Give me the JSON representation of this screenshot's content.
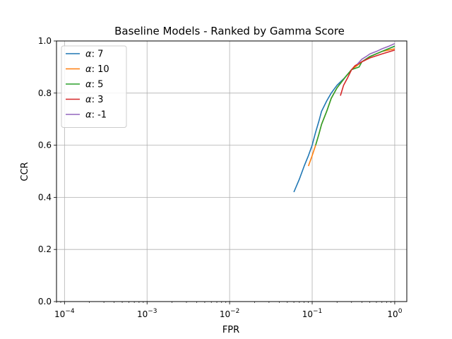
{
  "chart_data": {
    "type": "line",
    "title": "Baseline Models - Ranked by Gamma Score",
    "xlabel": "FPR",
    "ylabel": "CCR",
    "x_scale": "log",
    "xlim": [
      8e-05,
      1.4
    ],
    "ylim": [
      0.0,
      1.0
    ],
    "grid": true,
    "legend_position": "top-left",
    "x_ticks": [
      {
        "value": 0.0001,
        "base": "10",
        "exp": "−4"
      },
      {
        "value": 0.001,
        "base": "10",
        "exp": "−3"
      },
      {
        "value": 0.01,
        "base": "10",
        "exp": "−2"
      },
      {
        "value": 0.1,
        "base": "10",
        "exp": "−1"
      },
      {
        "value": 1,
        "base": "10",
        "exp": "0"
      }
    ],
    "y_ticks": [
      {
        "value": 0.0,
        "label": "0.0"
      },
      {
        "value": 0.2,
        "label": "0.2"
      },
      {
        "value": 0.4,
        "label": "0.4"
      },
      {
        "value": 0.6,
        "label": "0.6"
      },
      {
        "value": 0.8,
        "label": "0.8"
      },
      {
        "value": 1.0,
        "label": "1.0"
      }
    ],
    "series": [
      {
        "name": "α: 7",
        "greek": "α",
        "value": "7",
        "color": "#1f77b4",
        "x": [
          0.06,
          0.07,
          0.08,
          0.09,
          0.1,
          0.11,
          0.12,
          0.13,
          0.15,
          0.17,
          0.2,
          0.25,
          0.3,
          0.4,
          0.5,
          0.7,
          1.0
        ],
        "y": [
          0.42,
          0.47,
          0.52,
          0.56,
          0.6,
          0.65,
          0.69,
          0.73,
          0.77,
          0.8,
          0.83,
          0.86,
          0.89,
          0.92,
          0.94,
          0.96,
          0.98
        ]
      },
      {
        "name": "α: 10",
        "greek": "α",
        "value": "10",
        "color": "#ff7f0e",
        "x": [
          0.09,
          0.1,
          0.11,
          0.12,
          0.13,
          0.15,
          0.17,
          0.2,
          0.25,
          0.3,
          0.4,
          0.5,
          0.7,
          1.0
        ],
        "y": [
          0.52,
          0.56,
          0.6,
          0.64,
          0.68,
          0.73,
          0.78,
          0.82,
          0.86,
          0.89,
          0.92,
          0.94,
          0.96,
          0.97
        ]
      },
      {
        "name": "α: 5",
        "greek": "α",
        "value": "5",
        "color": "#2ca02c",
        "x": [
          0.11,
          0.12,
          0.13,
          0.15,
          0.17,
          0.2,
          0.25,
          0.3,
          0.37,
          0.4,
          0.5,
          0.7,
          1.0
        ],
        "y": [
          0.6,
          0.64,
          0.68,
          0.73,
          0.78,
          0.82,
          0.86,
          0.89,
          0.9,
          0.92,
          0.94,
          0.96,
          0.98
        ]
      },
      {
        "name": "α: 3",
        "greek": "α",
        "value": "3",
        "color": "#d62728",
        "x": [
          0.22,
          0.24,
          0.27,
          0.3,
          0.33,
          0.4,
          0.5,
          0.7,
          1.0
        ],
        "y": [
          0.79,
          0.83,
          0.86,
          0.89,
          0.905,
          0.92,
          0.935,
          0.95,
          0.965
        ]
      },
      {
        "name": "α: -1",
        "greek": "α",
        "value": "-1",
        "color": "#9467bd",
        "x": [
          0.35,
          0.4,
          0.45,
          0.5,
          0.6,
          0.7,
          0.85,
          1.0
        ],
        "y": [
          0.91,
          0.93,
          0.94,
          0.95,
          0.96,
          0.97,
          0.98,
          0.99
        ]
      }
    ]
  }
}
